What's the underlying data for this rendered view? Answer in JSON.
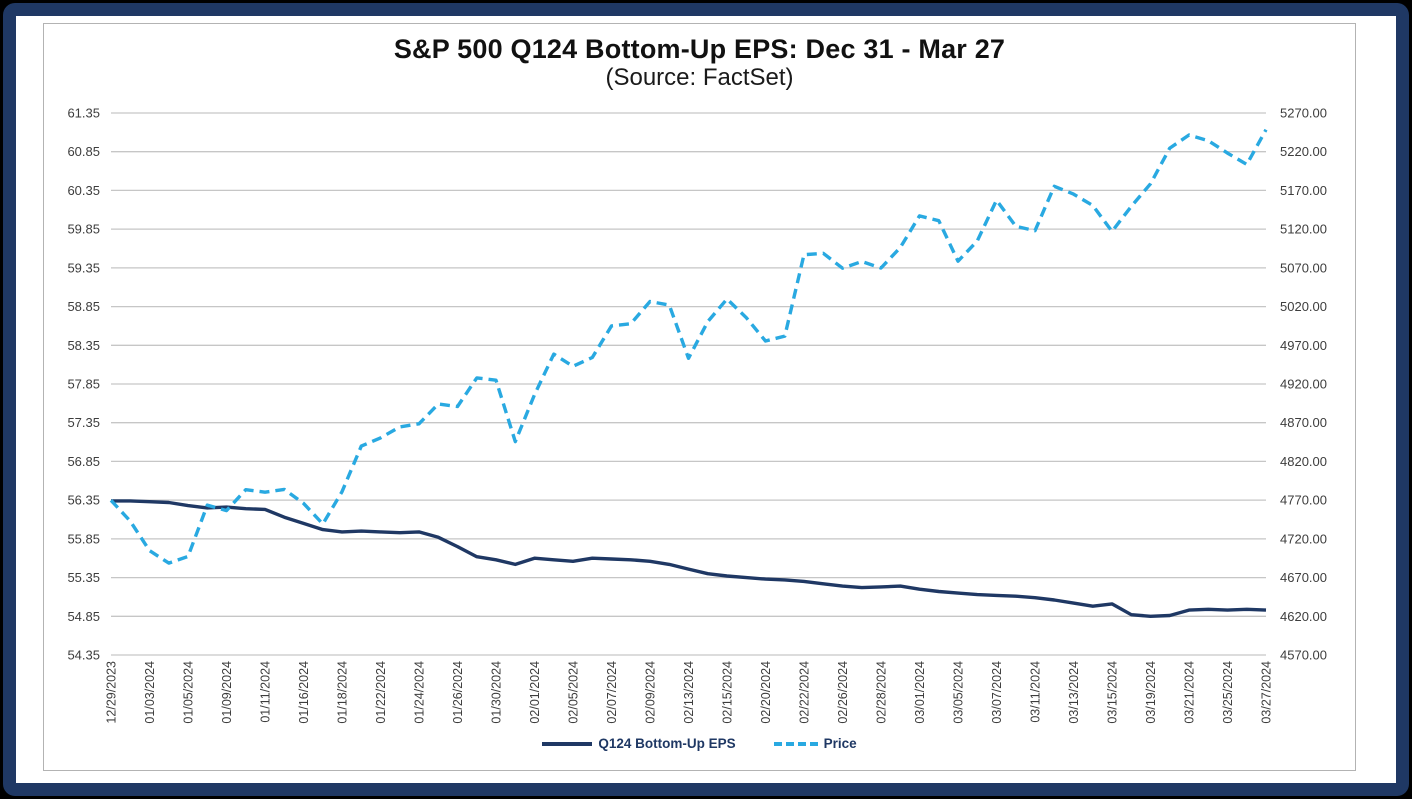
{
  "window": {
    "background": "#000000",
    "frame_border_color": "#1f3864",
    "panel_background": "#ffffff",
    "gridline_color": "#c6c6c6",
    "axis_text_color": "#3d3d3d"
  },
  "chart_data": {
    "type": "line",
    "title": "S&P 500 Q124 Bottom-Up EPS: Dec 31 - Mar 27",
    "subtitle": "(Source: FactSet)",
    "grid": true,
    "legend_position": "bottom",
    "x_tick_shown_every": 2,
    "x": [
      "12/29/2023",
      "01/02/2024",
      "01/03/2024",
      "01/04/2024",
      "01/05/2024",
      "01/08/2024",
      "01/09/2024",
      "01/10/2024",
      "01/11/2024",
      "01/12/2024",
      "01/16/2024",
      "01/17/2024",
      "01/18/2024",
      "01/19/2024",
      "01/22/2024",
      "01/23/2024",
      "01/24/2024",
      "01/25/2024",
      "01/26/2024",
      "01/29/2024",
      "01/30/2024",
      "01/31/2024",
      "02/01/2024",
      "02/02/2024",
      "02/05/2024",
      "02/06/2024",
      "02/07/2024",
      "02/08/2024",
      "02/09/2024",
      "02/12/2024",
      "02/13/2024",
      "02/14/2024",
      "02/15/2024",
      "02/16/2024",
      "02/20/2024",
      "02/21/2024",
      "02/22/2024",
      "02/23/2024",
      "02/26/2024",
      "02/27/2024",
      "02/28/2024",
      "02/29/2024",
      "03/01/2024",
      "03/04/2024",
      "03/05/2024",
      "03/06/2024",
      "03/07/2024",
      "03/08/2024",
      "03/11/2024",
      "03/12/2024",
      "03/13/2024",
      "03/14/2024",
      "03/15/2024",
      "03/18/2024",
      "03/19/2024",
      "03/20/2024",
      "03/21/2024",
      "03/22/2024",
      "03/25/2024",
      "03/26/2024",
      "03/27/2024"
    ],
    "left_axis": {
      "min": 54.35,
      "max": 61.35,
      "step": 0.5,
      "ticks": [
        "61.35",
        "60.85",
        "60.35",
        "59.85",
        "59.35",
        "58.85",
        "58.35",
        "57.85",
        "57.35",
        "56.85",
        "56.35",
        "55.85",
        "55.35",
        "54.85",
        "54.35"
      ]
    },
    "right_axis": {
      "min": 4570,
      "max": 5270,
      "step": 50,
      "ticks": [
        "5270.00",
        "5220.00",
        "5170.00",
        "5120.00",
        "5070.00",
        "5020.00",
        "4970.00",
        "4920.00",
        "4870.00",
        "4820.00",
        "4770.00",
        "4720.00",
        "4670.00",
        "4620.00",
        "4570.00"
      ]
    },
    "series": [
      {
        "name": "Q124 Bottom-Up EPS",
        "axis": "left",
        "color": "#1f3864",
        "style": "solid",
        "values": [
          56.34,
          56.34,
          56.33,
          56.32,
          56.28,
          56.25,
          56.26,
          56.24,
          56.23,
          56.13,
          56.05,
          55.97,
          55.94,
          55.95,
          55.94,
          55.93,
          55.94,
          55.87,
          55.75,
          55.62,
          55.58,
          55.52,
          55.6,
          55.58,
          55.56,
          55.6,
          55.59,
          55.58,
          55.56,
          55.52,
          55.46,
          55.4,
          55.37,
          55.35,
          55.33,
          55.32,
          55.3,
          55.27,
          55.24,
          55.22,
          55.23,
          55.24,
          55.2,
          55.17,
          55.15,
          55.13,
          55.12,
          55.11,
          55.09,
          55.06,
          55.02,
          54.98,
          55.01,
          54.87,
          54.85,
          54.86,
          54.93,
          54.94,
          54.93,
          54.94,
          54.93
        ]
      },
      {
        "name": "Price",
        "axis": "right",
        "color": "#29a9e1",
        "style": "dashed",
        "values": [
          4769.83,
          4742.83,
          4704.81,
          4688.68,
          4697.24,
          4763.54,
          4756.5,
          4783.45,
          4780.24,
          4783.83,
          4765.98,
          4739.21,
          4780.94,
          4839.81,
          4850.43,
          4864.6,
          4868.55,
          4894.16,
          4890.97,
          4927.93,
          4924.97,
          4845.65,
          4906.19,
          4958.61,
          4942.81,
          4954.23,
          4995.06,
          4997.91,
          5026.61,
          5021.84,
          4953.17,
          5000.62,
          5029.73,
          5005.57,
          4975.51,
          4981.8,
          5087.03,
          5088.8,
          5069.53,
          5078.18,
          5069.76,
          5096.27,
          5137.08,
          5130.95,
          5078.65,
          5104.76,
          5157.36,
          5123.69,
          5117.94,
          5175.27,
          5165.31,
          5150.48,
          5117.09,
          5149.42,
          5178.51,
          5224.62,
          5241.53,
          5234.18,
          5218.19,
          5203.58,
          5248.49
        ]
      }
    ]
  }
}
